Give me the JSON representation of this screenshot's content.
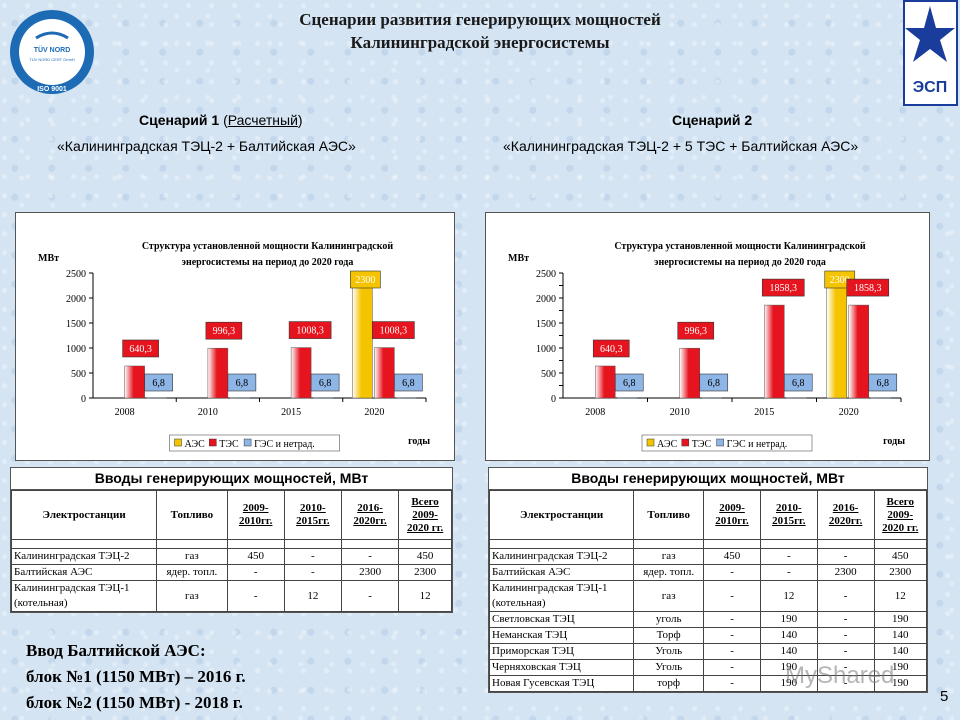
{
  "title": {
    "line1": "Сценарии развития генерирующих мощностей",
    "line2": "Калининградской энергосистемы"
  },
  "logo_tuv": {
    "text1": "TÜV NORD",
    "text2": "TÜV NORD CERT GmbH",
    "text3": "ISO 9001"
  },
  "logo_esp": {
    "text": "ЭСП"
  },
  "scenario1": {
    "head_a": "Сценарий 1",
    "head_b": "(",
    "head_link": "Расчетный",
    "head_c": ")",
    "sub": "«Калининградская ТЭЦ-2 + Балтийская АЭС»"
  },
  "scenario2": {
    "head": "Сценарий 2",
    "sub": "«Калининградская ТЭЦ-2 + 5 ТЭС + Балтийская АЭС»"
  },
  "colors": {
    "aes": "#f5c400",
    "tes": "#e6141e",
    "ges": "#8db5e6"
  },
  "chart_data": [
    {
      "type": "bar",
      "title": "Структура установленной мощности Калининградской энергосистемы на период до 2020 года",
      "ylabel": "МВт",
      "xlabel": "годы",
      "ylim": [
        0,
        2500
      ],
      "yticks": [
        0,
        500,
        1000,
        1500,
        2000,
        2500
      ],
      "categories": [
        "2008",
        "2010",
        "2015",
        "2020"
      ],
      "series": [
        {
          "name": "АЭС",
          "values": [
            0,
            0,
            0,
            2300
          ],
          "labels": [
            "",
            "",
            "",
            "2300"
          ]
        },
        {
          "name": "ТЭС",
          "values": [
            640.3,
            996.3,
            1008.3,
            1008.3
          ],
          "labels": [
            "640,3",
            "996,3",
            "1008,3",
            "1008,3"
          ]
        },
        {
          "name": "ГЭС и нетрад.",
          "values": [
            6.8,
            6.8,
            6.8,
            6.8
          ],
          "labels": [
            "6,8",
            "6,8",
            "6,8",
            "6,8"
          ]
        }
      ],
      "legend": "bottom"
    },
    {
      "type": "bar",
      "title": "Структура установленной мощности Калининградской энергосистемы на период до 2020 года",
      "ylabel": "МВт",
      "xlabel": "годы",
      "ylim": [
        0,
        2500
      ],
      "yticks": [
        0,
        250,
        500,
        750,
        1000,
        1250,
        1500,
        1750,
        2000,
        2250,
        2500
      ],
      "yticklabels": [
        "0",
        "",
        "500",
        "",
        "1000",
        "",
        "1500",
        "",
        "2000",
        "",
        "2500"
      ],
      "categories": [
        "2008",
        "2010",
        "2015",
        "2020"
      ],
      "series": [
        {
          "name": "АЭС",
          "values": [
            0,
            0,
            0,
            2300
          ],
          "labels": [
            "",
            "",
            "",
            "2300"
          ]
        },
        {
          "name": "ТЭС",
          "values": [
            640.3,
            996.3,
            1858.3,
            1858.3
          ],
          "labels": [
            "640,3",
            "996,3",
            "1858,3",
            "1858,3"
          ]
        },
        {
          "name": "ГЭС и нетрад.",
          "values": [
            6.8,
            6.8,
            6.8,
            6.8
          ],
          "labels": [
            "6,8",
            "6,8",
            "6,8",
            "6,8"
          ]
        }
      ],
      "legend": "bottom"
    }
  ],
  "table1": {
    "title": "Вводы генерирующих мощностей, МВт",
    "headers": [
      "Электростанции",
      "Топливо",
      "2009-\n2010гг.",
      "2010-\n2015гг.",
      "2016-\n2020гг.",
      "Всего\n2009-\n2020 гг."
    ],
    "rows": [
      [
        "Калининградская ТЭЦ-2",
        "газ",
        "450",
        "-",
        "-",
        "450"
      ],
      [
        "Балтийская АЭС",
        "ядер. топл.",
        "-",
        "-",
        "2300",
        "2300"
      ],
      [
        "Калининградская ТЭЦ-1\n(котельная)",
        "газ",
        "-",
        "12",
        "-",
        "12"
      ]
    ]
  },
  "table2": {
    "title": "Вводы генерирующих мощностей, МВт",
    "headers": [
      "Электростанции",
      "Топливо",
      "2009-\n2010гг.",
      "2010-\n2015гг.",
      "2016-\n2020гг.",
      "Всего\n2009-\n2020 гг."
    ],
    "rows": [
      [
        "Калининградская ТЭЦ-2",
        "газ",
        "450",
        "-",
        "-",
        "450"
      ],
      [
        "Балтийская АЭС",
        "ядер. топл.",
        "-",
        "-",
        "2300",
        "2300"
      ],
      [
        "Калининградская ТЭЦ-1\n(котельная)",
        "газ",
        "-",
        "12",
        "-",
        "12"
      ],
      [
        "Светловская ТЭЦ",
        "уголь",
        "-",
        "190",
        "-",
        "190"
      ],
      [
        "Неманская ТЭЦ",
        "Торф",
        "-",
        "140",
        "-",
        "140"
      ],
      [
        "Приморская ТЭЦ",
        "Уголь",
        "-",
        "140",
        "-",
        "140"
      ],
      [
        "Черняховская ТЭЦ",
        "Уголь",
        "-",
        "190",
        "-",
        "190"
      ],
      [
        "Новая Гусевская ТЭЦ",
        "торф",
        "-",
        "190",
        "-",
        "190"
      ]
    ]
  },
  "note": {
    "line1": "Ввод Балтийской АЭС:",
    "line2": "блок №1 (1150 МВт) – 2016 г.",
    "line3": "блок №2 (1150 МВт)  - 2018 г."
  },
  "page_number": "5",
  "watermark": "MyShared"
}
